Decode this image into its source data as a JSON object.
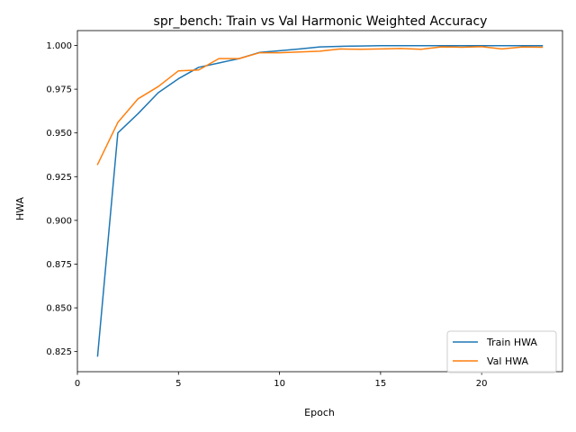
{
  "chart_data": {
    "type": "line",
    "title": "spr_bench: Train vs Val Harmonic Weighted Accuracy",
    "xlabel": "Epoch",
    "ylabel": "HWA",
    "xlim": [
      0,
      24
    ],
    "ylim": [
      0.8135,
      1.0085
    ],
    "xticks": [
      0,
      5,
      10,
      15,
      20
    ],
    "yticks": [
      0.825,
      0.85,
      0.875,
      0.9,
      0.925,
      0.95,
      0.975,
      1.0
    ],
    "ytick_labels": [
      "0.825",
      "0.850",
      "0.875",
      "0.900",
      "0.925",
      "0.950",
      "0.975",
      "1.000"
    ],
    "grid": false,
    "legend_position": "lower-right",
    "x": [
      1,
      2,
      3,
      4,
      5,
      6,
      7,
      8,
      9,
      10,
      11,
      12,
      13,
      14,
      15,
      16,
      17,
      18,
      19,
      20,
      21,
      22,
      23
    ],
    "series": [
      {
        "name": "Train HWA",
        "color": "#1f77b4",
        "values": [
          0.8225,
          0.95,
          0.961,
          0.973,
          0.981,
          0.9875,
          0.99,
          0.9925,
          0.996,
          0.997,
          0.998,
          0.9992,
          0.9995,
          0.9997,
          0.9999,
          0.9999,
          0.9999,
          0.9999,
          0.9999,
          0.9999,
          0.9999,
          0.9999,
          0.9999
        ]
      },
      {
        "name": "Val HWA",
        "color": "#ff7f0e",
        "values": [
          0.932,
          0.956,
          0.9695,
          0.9765,
          0.9855,
          0.986,
          0.9925,
          0.9925,
          0.9958,
          0.9958,
          0.9963,
          0.9967,
          0.998,
          0.9978,
          0.998,
          0.9983,
          0.9978,
          0.9992,
          0.999,
          0.9993,
          0.998,
          0.9991,
          0.999
        ]
      }
    ]
  }
}
